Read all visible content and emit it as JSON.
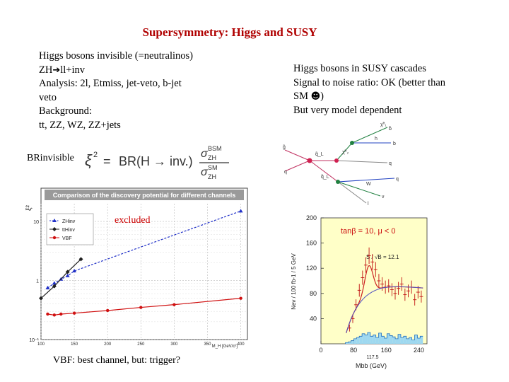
{
  "slide": {
    "title": "Supersymmetry: Higgs and SUSY",
    "left_lines": [
      "Higgs bosons invisible (=neutralinos)",
      "ZH",
      "ll+inv",
      "Analysis: 2l, Etmiss, jet-veto, b-jet",
      "veto",
      "Background:",
      "tt, ZZ, WZ, ZZ+jets"
    ],
    "right_lines": [
      "Higgs bosons in SUSY cascades",
      "Signal to noise ratio: OK (better than",
      "SM",
      ")",
      "But very model dependent"
    ],
    "br_label": "BRinvisible",
    "formula": {
      "xi2": "ξ",
      "sup": "2",
      "eq": "=",
      "br": "BR(H → inv.)",
      "num": "σ",
      "num_sup": "BSM",
      "num_sub": "ZH",
      "den": "σ",
      "den_sup": "SM",
      "den_sub": "ZH"
    },
    "excluded_label": "excluded",
    "vbf_note": "VBF: best channel, but: trigger?"
  },
  "chart_data": [
    {
      "type": "line",
      "title": "Comparison of the discovery potential for different channels",
      "ylabel": "ξ²",
      "xlabel": "M_H [GeV/c²]",
      "x_ticks": [
        "100",
        "150",
        "200",
        "250",
        "300",
        "350",
        "400"
      ],
      "y_ticks": [
        "10⁻¹",
        "1",
        "10"
      ],
      "xlim": [
        100,
        410
      ],
      "ylim_log10": [
        -1,
        1.3
      ],
      "scale_y": "log",
      "legend_position": "top-left",
      "series": [
        {
          "name": "ZHinv",
          "color": "#2030c8",
          "dashed": true,
          "x": [
            110,
            120,
            130,
            140,
            150,
            400
          ],
          "y": [
            0.75,
            0.9,
            1.05,
            1.2,
            1.45,
            15
          ]
        },
        {
          "name": "ttHinv",
          "color": "#202020",
          "dashed": false,
          "x": [
            100,
            120,
            140,
            160
          ],
          "y": [
            0.5,
            0.8,
            1.4,
            2.3
          ]
        },
        {
          "name": "VBF",
          "color": "#d01010",
          "dashed": false,
          "x": [
            110,
            120,
            130,
            150,
            200,
            250,
            300,
            400
          ],
          "y": [
            0.27,
            0.26,
            0.27,
            0.28,
            0.31,
            0.35,
            0.39,
            0.5
          ]
        }
      ]
    },
    {
      "type": "bar",
      "title": "",
      "annotations": [
        "tanβ = 10,  μ < 0",
        "S / √B = 12.1",
        "117.5"
      ],
      "ylabel": "Nev / 100 fb-1 / 5 GeV",
      "xlabel": "Mbb (GeV)",
      "x_ticks": [
        "0",
        "80",
        "160",
        "240"
      ],
      "y_ticks": [
        "200",
        "160",
        "120",
        "80",
        "40"
      ],
      "xlim": [
        0,
        260
      ],
      "ylim": [
        0,
        200
      ],
      "background_hist": [
        2,
        3,
        5,
        8,
        10,
        12,
        16,
        14,
        18,
        12,
        14,
        10,
        17,
        12,
        9,
        16,
        13,
        11,
        8,
        15,
        10,
        12,
        8,
        10,
        6,
        14,
        9,
        12
      ],
      "signal_plus_bg_points": [
        {
          "x": 70,
          "y": 25
        },
        {
          "x": 78,
          "y": 40
        },
        {
          "x": 86,
          "y": 62
        },
        {
          "x": 94,
          "y": 85
        },
        {
          "x": 102,
          "y": 105
        },
        {
          "x": 110,
          "y": 125
        },
        {
          "x": 118,
          "y": 140
        },
        {
          "x": 126,
          "y": 130
        },
        {
          "x": 134,
          "y": 118
        },
        {
          "x": 142,
          "y": 100
        },
        {
          "x": 150,
          "y": 95
        },
        {
          "x": 158,
          "y": 90
        },
        {
          "x": 166,
          "y": 92
        },
        {
          "x": 174,
          "y": 86
        },
        {
          "x": 182,
          "y": 80
        },
        {
          "x": 190,
          "y": 88
        },
        {
          "x": 198,
          "y": 95
        },
        {
          "x": 206,
          "y": 78
        },
        {
          "x": 214,
          "y": 84
        },
        {
          "x": 222,
          "y": 90
        },
        {
          "x": 230,
          "y": 70
        },
        {
          "x": 238,
          "y": 82
        },
        {
          "x": 246,
          "y": 75
        }
      ],
      "fit_peak_x": 117.5
    }
  ],
  "feynman": {
    "labels": [
      "q̃_L",
      "χ̃⁰₂",
      "h",
      "χ̃⁰₁",
      "g̃",
      "q̃_L",
      "b",
      "b̄",
      "q",
      "q",
      "ν",
      "l",
      "W",
      "q"
    ]
  }
}
